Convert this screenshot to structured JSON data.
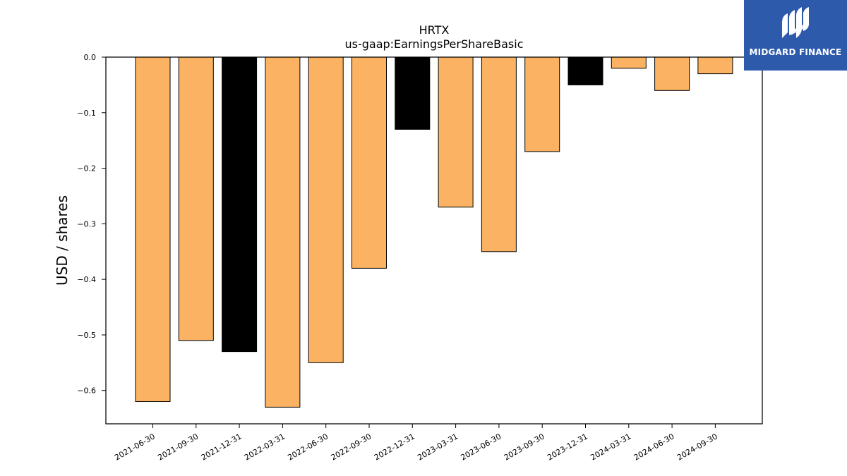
{
  "chart_data": {
    "type": "bar",
    "title": "HRTX",
    "subtitle": "us-gaap:EarningsPerShareBasic",
    "xlabel": "",
    "ylabel": "USD / shares",
    "ylim": [
      -0.66,
      0.0
    ],
    "yticks": [
      0.0,
      -0.1,
      -0.2,
      -0.3,
      -0.4,
      -0.5,
      -0.6
    ],
    "ytick_labels": [
      "0.0",
      "−0.1",
      "−0.2",
      "−0.3",
      "−0.4",
      "−0.5",
      "−0.6"
    ],
    "grid": false,
    "categories": [
      "2021-06-30",
      "2021-09-30",
      "2021-12-31",
      "2022-03-31",
      "2022-06-30",
      "2022-09-30",
      "2022-12-31",
      "2023-03-31",
      "2023-06-30",
      "2023-09-30",
      "2023-12-31",
      "2024-03-31",
      "2024-06-30",
      "2024-09-30"
    ],
    "values": [
      -0.62,
      -0.51,
      -0.53,
      -0.63,
      -0.55,
      -0.38,
      -0.13,
      -0.27,
      -0.35,
      -0.17,
      -0.05,
      -0.02,
      -0.06,
      -0.03
    ],
    "highlight": [
      false,
      false,
      true,
      false,
      false,
      false,
      true,
      false,
      false,
      false,
      true,
      false,
      false,
      false
    ],
    "colors": {
      "bar": "#fbb363",
      "highlight": "#000000",
      "edge": "#000000"
    }
  },
  "logo": {
    "text": "MIDGARD FINANCE",
    "background": "#2e5aac"
  }
}
